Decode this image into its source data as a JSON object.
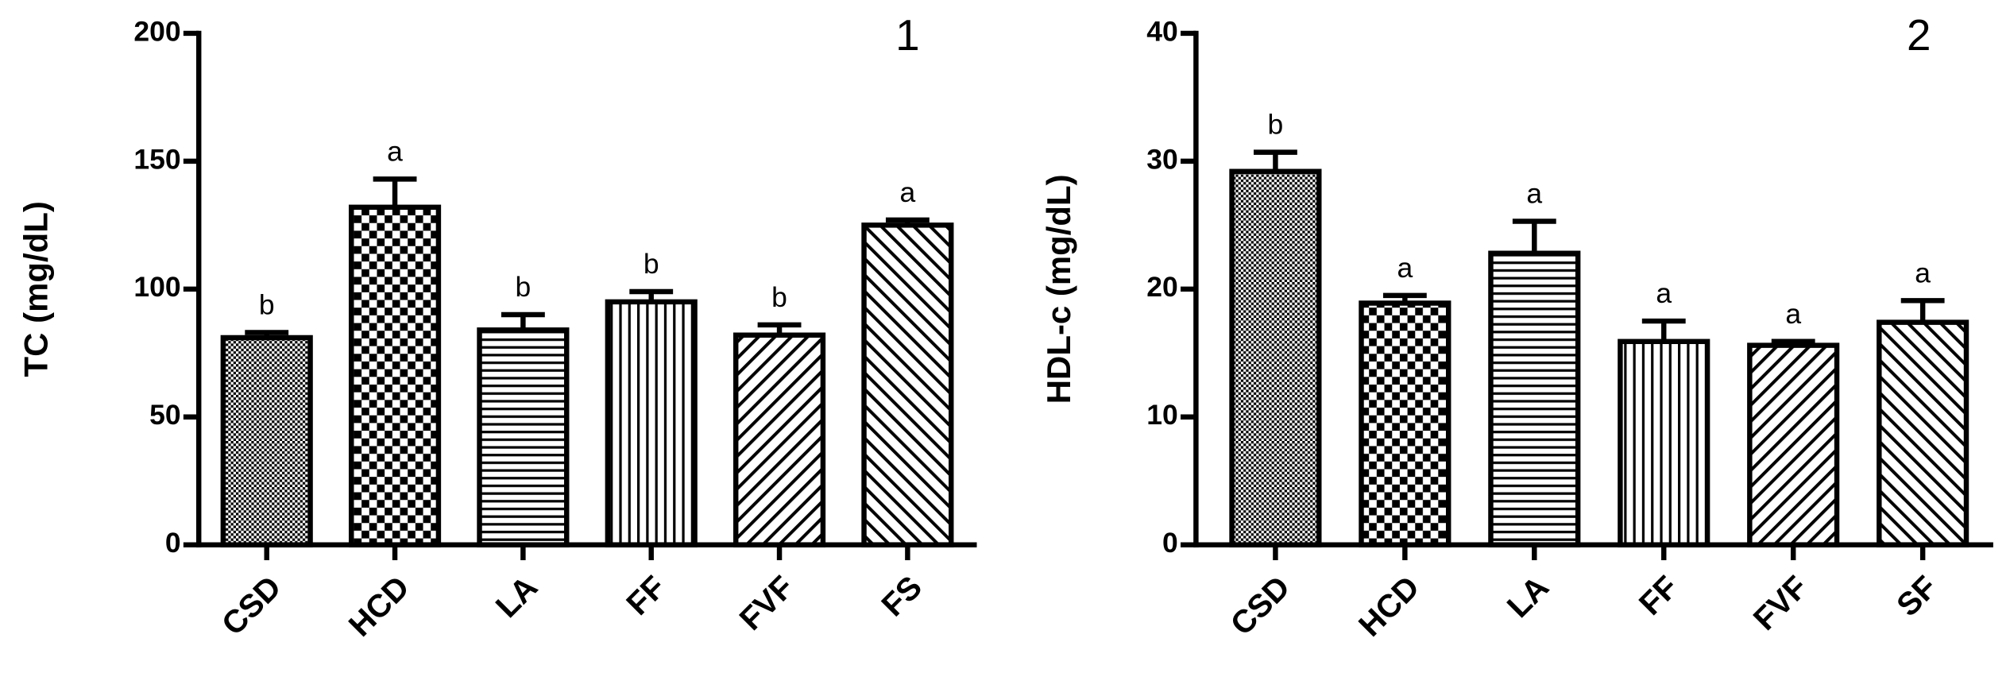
{
  "chart_data": [
    {
      "type": "bar",
      "annotation": "1",
      "ylabel": "TC (mg/dL)",
      "categories": [
        "CSD",
        "HCD",
        "LA",
        "FF",
        "FVF",
        "FS"
      ],
      "values": [
        81,
        132,
        84,
        95,
        82,
        125
      ],
      "errors": [
        2,
        11,
        6,
        4,
        4,
        2
      ],
      "significance_letters": [
        "b",
        "a",
        "b",
        "b",
        "b",
        "a"
      ],
      "patterns": [
        "dots",
        "checker",
        "hlines",
        "vlines",
        "fdiag",
        "bdiag"
      ],
      "color": "#000000",
      "ylim": [
        0,
        200
      ],
      "yticks": [
        0,
        50,
        100,
        150,
        200
      ]
    },
    {
      "type": "bar",
      "annotation": "2",
      "ylabel": "HDL-c (mg/dL)",
      "categories": [
        "CSD",
        "HCD",
        "LA",
        "FF",
        "FVF",
        "SF"
      ],
      "values": [
        29.2,
        18.9,
        22.8,
        15.9,
        15.6,
        17.4
      ],
      "errors": [
        1.5,
        0.6,
        2.5,
        1.6,
        0.3,
        1.7
      ],
      "significance_letters": [
        "b",
        "a",
        "a",
        "a",
        "a",
        "a"
      ],
      "patterns": [
        "dots",
        "checker",
        "hlines",
        "vlines",
        "fdiag",
        "bdiag"
      ],
      "color": "#000000",
      "ylim": [
        0,
        40
      ],
      "yticks": [
        0,
        10,
        20,
        30,
        40
      ]
    }
  ]
}
